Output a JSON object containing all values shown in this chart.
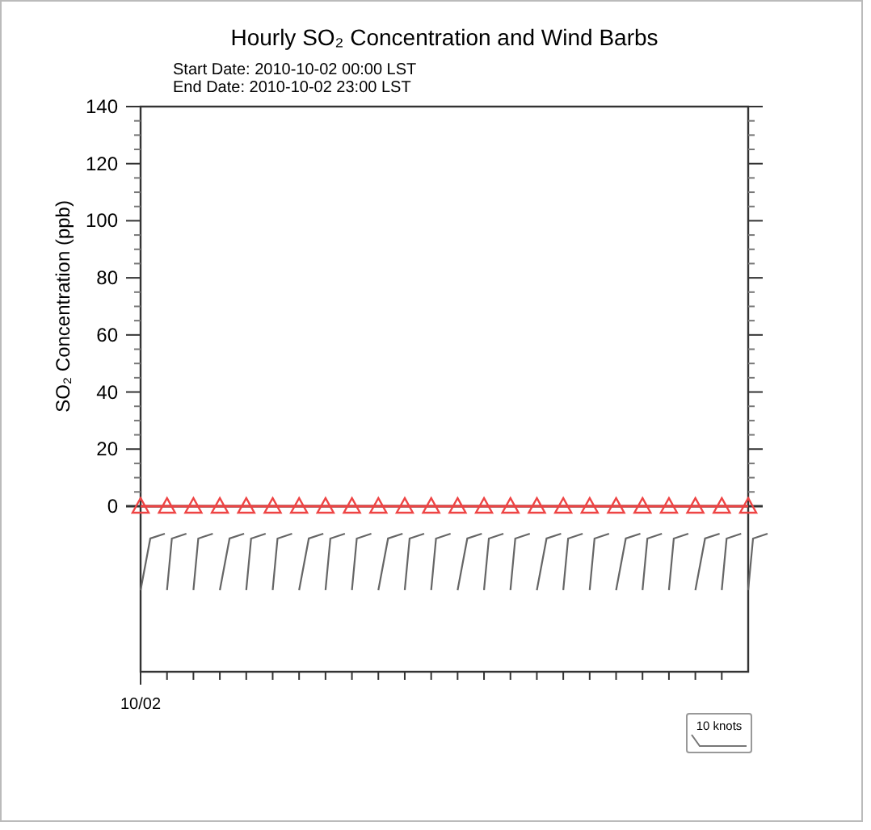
{
  "chart_data": {
    "type": "line",
    "title": "Hourly SO₂ Concentration and Wind Barbs",
    "ylabel": "SO₂ Concentration (ppb)",
    "annotations": [
      "Start Date: 2010-10-02 00:00 LST",
      "End Date:  2010-10-02 23:00 LST",
      "10 knots"
    ],
    "categories": [
      "10/02",
      null,
      null,
      null,
      null,
      null,
      null,
      null,
      null,
      null,
      null,
      null,
      null,
      null,
      null,
      null,
      null,
      null,
      null,
      null,
      null,
      null,
      null,
      null
    ],
    "ylim": [
      -58,
      140
    ],
    "yticks": [
      0,
      20,
      40,
      60,
      80,
      100,
      120,
      140
    ],
    "series": [
      {
        "color": "#ee4444",
        "values": [
          0,
          0,
          0,
          0,
          0,
          0,
          0,
          0,
          0,
          0,
          0,
          0,
          0,
          0,
          0,
          0,
          0,
          0,
          0,
          0,
          0,
          0,
          0,
          0
        ]
      }
    ],
    "marker": "triangle",
    "line_style": "solid"
  }
}
